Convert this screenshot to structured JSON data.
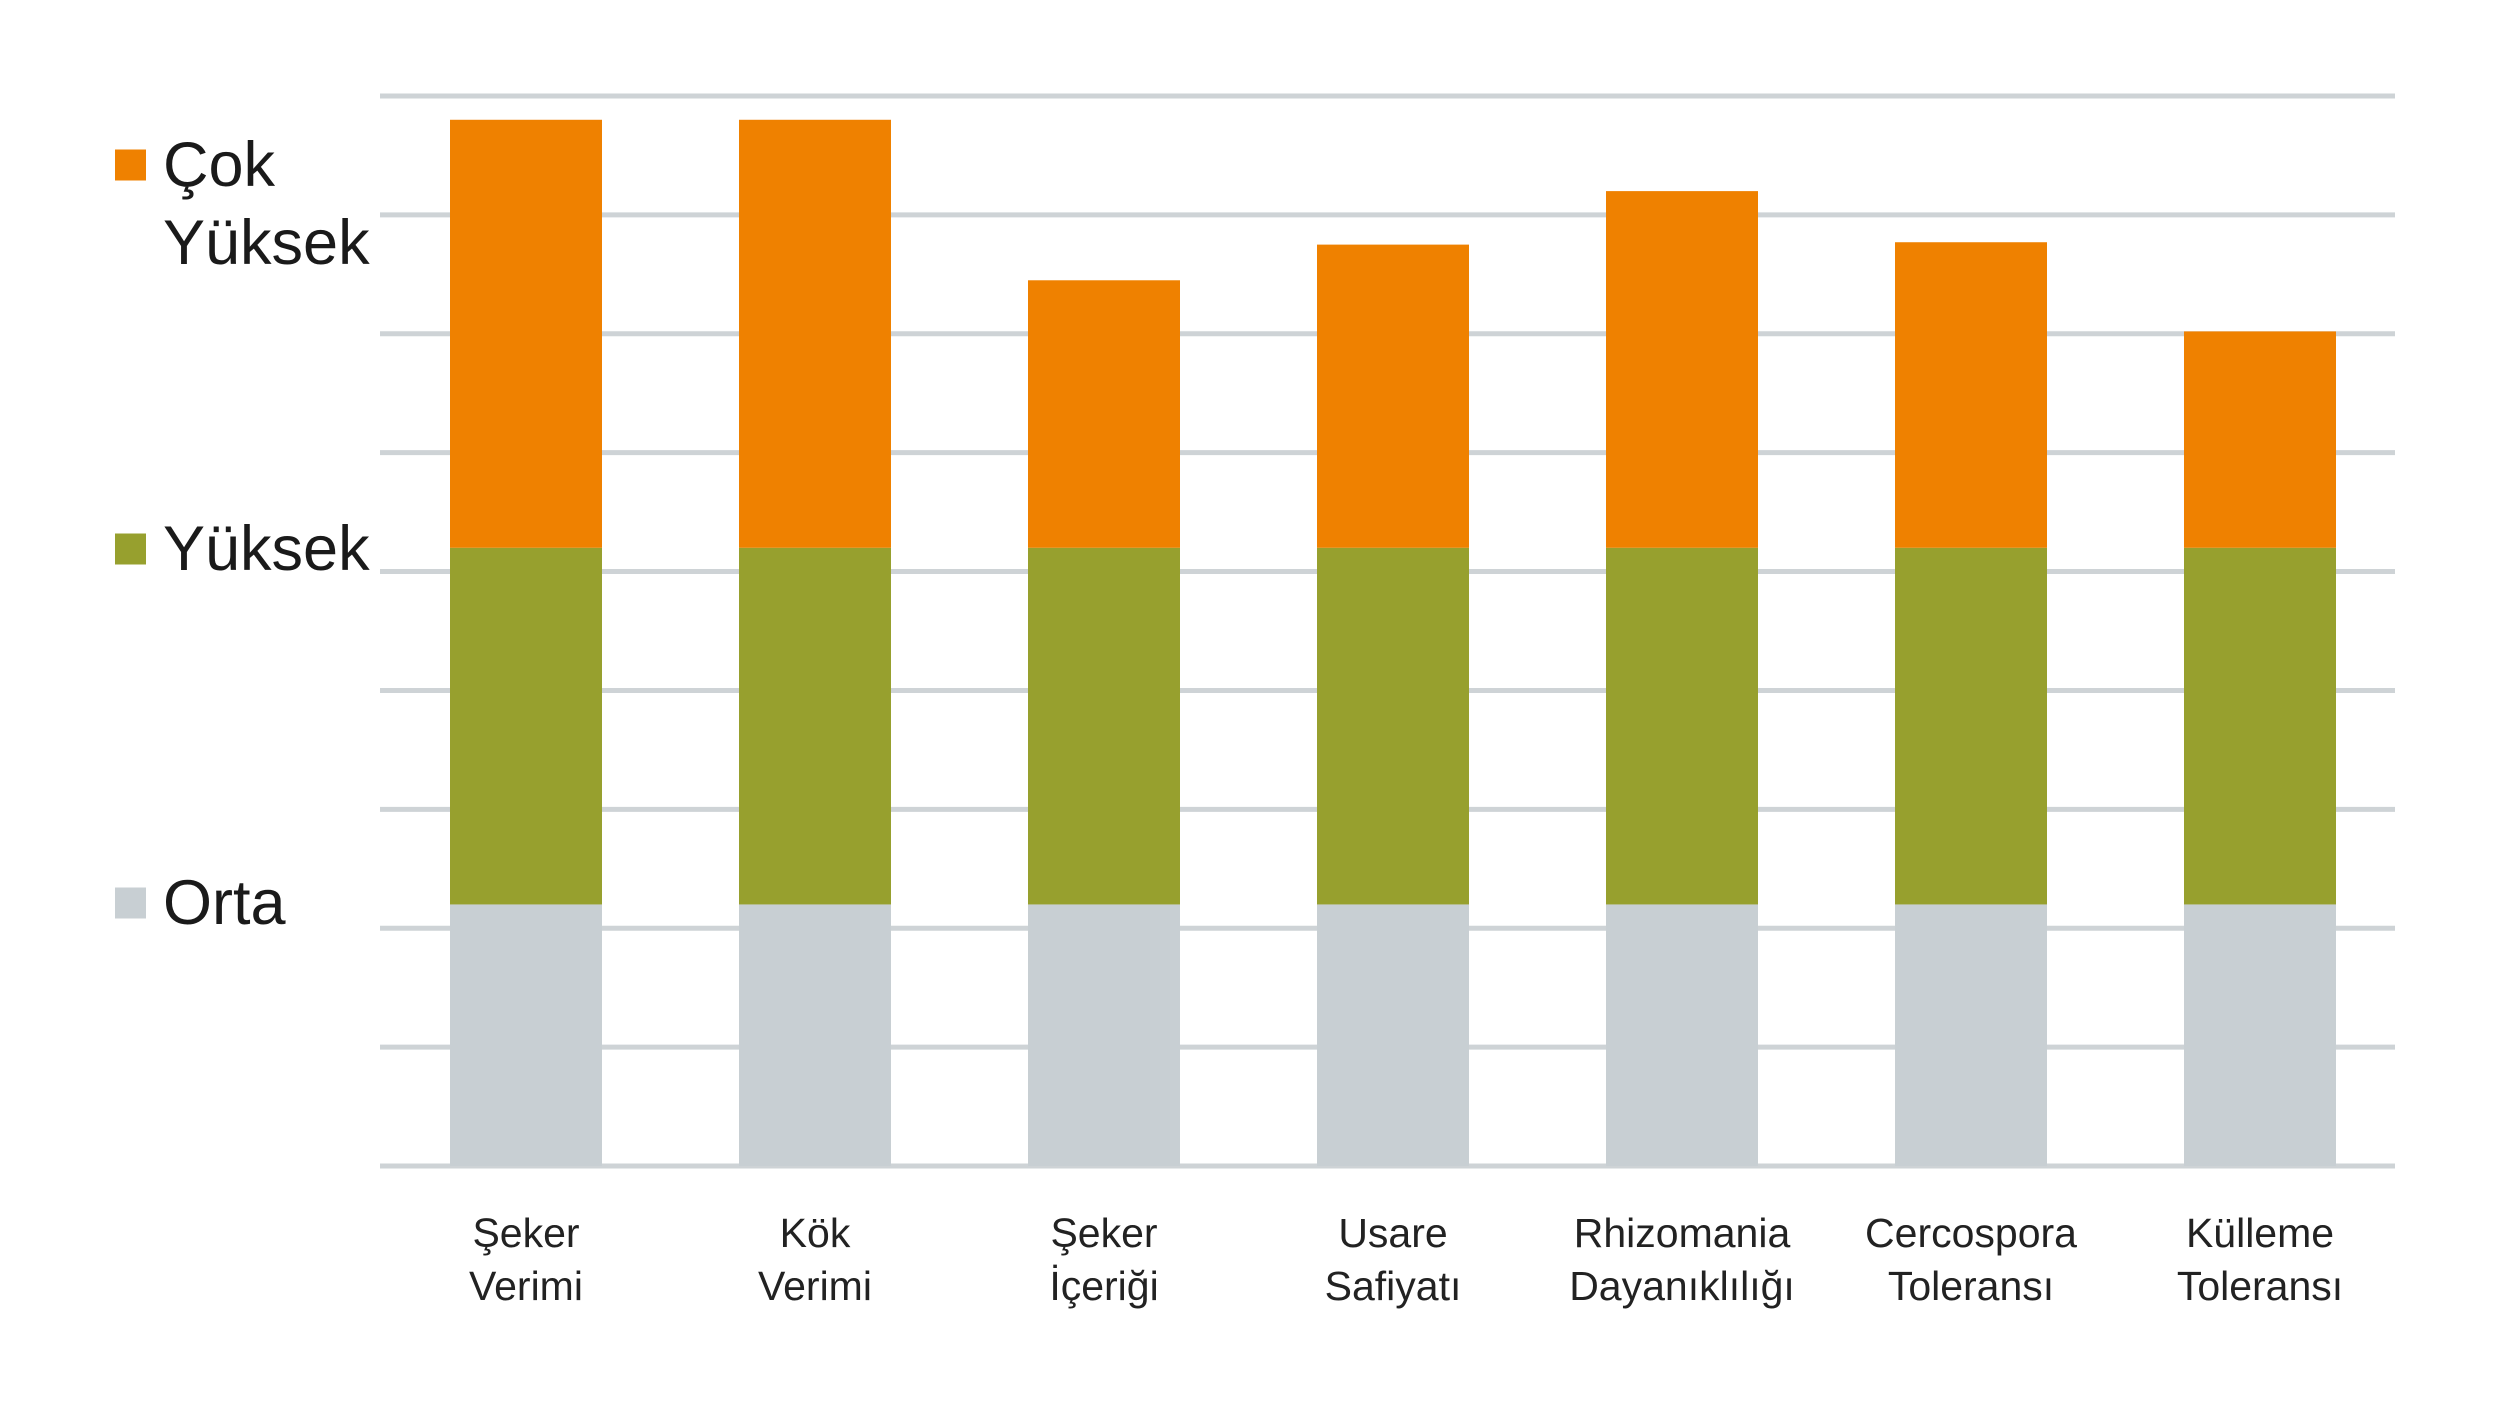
{
  "chart_data": {
    "type": "bar",
    "stacked": true,
    "categories": [
      [
        "Şeker",
        "Verimi"
      ],
      [
        "Kök",
        "Verimi"
      ],
      [
        "Şeker",
        "İçeriği"
      ],
      [
        "Usare",
        "Safiyatı"
      ],
      [
        "Rhizomania",
        "Dayanıklılığı"
      ],
      [
        "Cercospora",
        "Toleransı"
      ],
      [
        "Külleme",
        "Toleransı"
      ]
    ],
    "series": [
      {
        "name": "Orta",
        "color": "#c8cfd3",
        "values": [
          2.2,
          2.2,
          2.2,
          2.2,
          2.2,
          2.2,
          2.2
        ]
      },
      {
        "name": "Yüksek",
        "color": "#97a02e",
        "values": [
          3.0,
          3.0,
          3.0,
          3.0,
          3.0,
          3.0,
          3.0
        ]
      },
      {
        "name": "Çok Yüksek",
        "color": "#ef8100",
        "values": [
          3.6,
          3.6,
          2.25,
          2.55,
          3.0,
          2.57,
          1.82
        ]
      }
    ],
    "legend": [
      {
        "lines": [
          "Çok",
          "Yüksek"
        ],
        "color": "#ef8100"
      },
      {
        "lines": [
          "Yüksek"
        ],
        "color": "#97a02e"
      },
      {
        "lines": [
          "Orta"
        ],
        "color": "#c8cfd3"
      }
    ],
    "ylim": [
      0,
      9
    ],
    "grid": true,
    "gridline_step": 1,
    "gridline_color": "#ced3d6",
    "legend_position": "left",
    "xlabel": "",
    "ylabel": "",
    "title": ""
  }
}
